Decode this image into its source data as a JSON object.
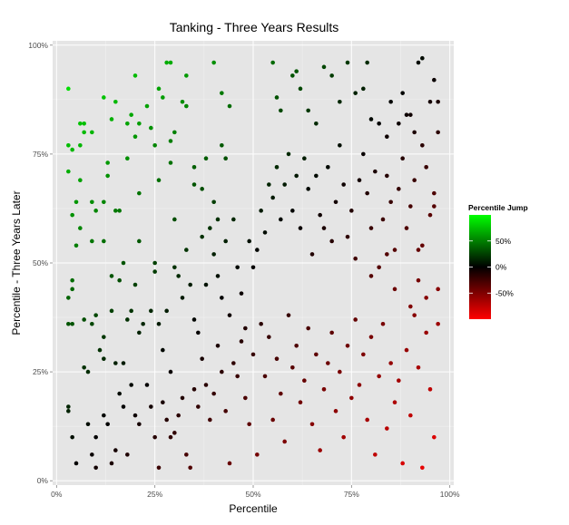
{
  "chart_data": {
    "type": "scatter",
    "title": "Tanking - Three Years Results",
    "xlabel": "Percentile",
    "ylabel": "Percentile - Three Years Later",
    "xlim": [
      -0.01,
      1.01
    ],
    "ylim": [
      -0.01,
      1.01
    ],
    "x_ticks": [
      0,
      0.25,
      0.5,
      0.75,
      1.0
    ],
    "x_tick_labels": [
      "0%",
      "25%",
      "50%",
      "75%",
      "100%"
    ],
    "y_ticks": [
      0,
      0.25,
      0.5,
      0.75,
      1.0
    ],
    "y_tick_labels": [
      "0%",
      "25%",
      "50%",
      "75%",
      "100%"
    ],
    "grid": true,
    "color_scale": {
      "variable": "y - x",
      "low": "#ff0000",
      "mid": "#000000",
      "high": "#00ff00",
      "limits": [
        -1,
        1
      ]
    },
    "legend": {
      "title": "Percentile Jump",
      "placement": "right",
      "breaks": [
        0.5,
        0,
        -0.5
      ],
      "labels": [
        "50%",
        "0%",
        "-50%"
      ]
    },
    "points": [
      [
        0.03,
        0.9
      ],
      [
        0.03,
        0.77
      ],
      [
        0.04,
        0.76
      ],
      [
        0.03,
        0.71
      ],
      [
        0.06,
        0.77
      ],
      [
        0.06,
        0.82
      ],
      [
        0.07,
        0.82
      ],
      [
        0.07,
        0.8
      ],
      [
        0.06,
        0.69
      ],
      [
        0.09,
        0.8
      ],
      [
        0.05,
        0.64
      ],
      [
        0.04,
        0.61
      ],
      [
        0.06,
        0.58
      ],
      [
        0.09,
        0.64
      ],
      [
        0.09,
        0.55
      ],
      [
        0.1,
        0.62
      ],
      [
        0.12,
        0.55
      ],
      [
        0.13,
        0.73
      ],
      [
        0.13,
        0.7
      ],
      [
        0.12,
        0.64
      ],
      [
        0.12,
        0.88
      ],
      [
        0.14,
        0.83
      ],
      [
        0.15,
        0.87
      ],
      [
        0.15,
        0.62
      ],
      [
        0.16,
        0.62
      ],
      [
        0.18,
        0.82
      ],
      [
        0.18,
        0.74
      ],
      [
        0.19,
        0.84
      ],
      [
        0.2,
        0.93
      ],
      [
        0.2,
        0.79
      ],
      [
        0.21,
        0.82
      ],
      [
        0.21,
        0.66
      ],
      [
        0.21,
        0.55
      ],
      [
        0.23,
        0.86
      ],
      [
        0.24,
        0.81
      ],
      [
        0.26,
        0.9
      ],
      [
        0.25,
        0.77
      ],
      [
        0.26,
        0.69
      ],
      [
        0.27,
        0.88
      ],
      [
        0.28,
        0.96
      ],
      [
        0.29,
        0.96
      ],
      [
        0.29,
        0.78
      ],
      [
        0.3,
        0.8
      ],
      [
        0.29,
        0.73
      ],
      [
        0.3,
        0.6
      ],
      [
        0.32,
        0.87
      ],
      [
        0.33,
        0.93
      ],
      [
        0.33,
        0.86
      ],
      [
        0.35,
        0.72
      ],
      [
        0.35,
        0.68
      ],
      [
        0.4,
        0.96
      ],
      [
        0.42,
        0.89
      ],
      [
        0.42,
        0.77
      ],
      [
        0.43,
        0.74
      ],
      [
        0.44,
        0.86
      ],
      [
        0.38,
        0.74
      ],
      [
        0.37,
        0.67
      ],
      [
        0.4,
        0.64
      ],
      [
        0.41,
        0.6
      ],
      [
        0.03,
        0.42
      ],
      [
        0.03,
        0.36
      ],
      [
        0.04,
        0.46
      ],
      [
        0.04,
        0.44
      ],
      [
        0.04,
        0.36
      ],
      [
        0.05,
        0.54
      ],
      [
        0.07,
        0.37
      ],
      [
        0.07,
        0.26
      ],
      [
        0.08,
        0.25
      ],
      [
        0.09,
        0.36
      ],
      [
        0.1,
        0.38
      ],
      [
        0.11,
        0.3
      ],
      [
        0.12,
        0.33
      ],
      [
        0.12,
        0.28
      ],
      [
        0.14,
        0.47
      ],
      [
        0.14,
        0.39
      ],
      [
        0.15,
        0.27
      ],
      [
        0.16,
        0.46
      ],
      [
        0.17,
        0.5
      ],
      [
        0.17,
        0.27
      ],
      [
        0.18,
        0.37
      ],
      [
        0.19,
        0.39
      ],
      [
        0.2,
        0.45
      ],
      [
        0.21,
        0.34
      ],
      [
        0.22,
        0.36
      ],
      [
        0.24,
        0.39
      ],
      [
        0.25,
        0.5
      ],
      [
        0.25,
        0.48
      ],
      [
        0.26,
        0.36
      ],
      [
        0.27,
        0.3
      ],
      [
        0.28,
        0.39
      ],
      [
        0.29,
        0.25
      ],
      [
        0.3,
        0.49
      ],
      [
        0.31,
        0.47
      ],
      [
        0.32,
        0.42
      ],
      [
        0.33,
        0.53
      ],
      [
        0.34,
        0.45
      ],
      [
        0.35,
        0.37
      ],
      [
        0.36,
        0.34
      ],
      [
        0.37,
        0.56
      ],
      [
        0.38,
        0.45
      ],
      [
        0.39,
        0.58
      ],
      [
        0.4,
        0.52
      ],
      [
        0.41,
        0.47
      ],
      [
        0.42,
        0.42
      ],
      [
        0.43,
        0.55
      ],
      [
        0.44,
        0.38
      ],
      [
        0.45,
        0.6
      ],
      [
        0.46,
        0.49
      ],
      [
        0.47,
        0.43
      ],
      [
        0.48,
        0.35
      ],
      [
        0.49,
        0.55
      ],
      [
        0.5,
        0.49
      ],
      [
        0.51,
        0.53
      ],
      [
        0.52,
        0.62
      ],
      [
        0.53,
        0.57
      ],
      [
        0.54,
        0.68
      ],
      [
        0.55,
        0.65
      ],
      [
        0.56,
        0.72
      ],
      [
        0.57,
        0.6
      ],
      [
        0.58,
        0.68
      ],
      [
        0.59,
        0.75
      ],
      [
        0.6,
        0.62
      ],
      [
        0.61,
        0.7
      ],
      [
        0.62,
        0.58
      ],
      [
        0.63,
        0.74
      ],
      [
        0.64,
        0.67
      ],
      [
        0.65,
        0.52
      ],
      [
        0.66,
        0.7
      ],
      [
        0.67,
        0.61
      ],
      [
        0.68,
        0.58
      ],
      [
        0.69,
        0.72
      ],
      [
        0.7,
        0.55
      ],
      [
        0.71,
        0.64
      ],
      [
        0.72,
        0.77
      ],
      [
        0.73,
        0.68
      ],
      [
        0.74,
        0.56
      ],
      [
        0.75,
        0.62
      ],
      [
        0.76,
        0.51
      ],
      [
        0.77,
        0.69
      ],
      [
        0.78,
        0.75
      ],
      [
        0.79,
        0.66
      ],
      [
        0.8,
        0.58
      ],
      [
        0.81,
        0.71
      ],
      [
        0.82,
        0.49
      ],
      [
        0.83,
        0.6
      ],
      [
        0.84,
        0.7
      ],
      [
        0.85,
        0.64
      ],
      [
        0.86,
        0.53
      ],
      [
        0.87,
        0.67
      ],
      [
        0.88,
        0.74
      ],
      [
        0.89,
        0.58
      ],
      [
        0.9,
        0.63
      ],
      [
        0.91,
        0.69
      ],
      [
        0.92,
        0.53
      ],
      [
        0.93,
        0.77
      ],
      [
        0.94,
        0.72
      ],
      [
        0.95,
        0.61
      ],
      [
        0.96,
        0.66
      ],
      [
        0.97,
        0.8
      ],
      [
        0.55,
        0.96
      ],
      [
        0.56,
        0.88
      ],
      [
        0.57,
        0.85
      ],
      [
        0.6,
        0.93
      ],
      [
        0.61,
        0.94
      ],
      [
        0.62,
        0.9
      ],
      [
        0.64,
        0.85
      ],
      [
        0.66,
        0.82
      ],
      [
        0.68,
        0.95
      ],
      [
        0.7,
        0.93
      ],
      [
        0.72,
        0.87
      ],
      [
        0.74,
        0.96
      ],
      [
        0.76,
        0.89
      ],
      [
        0.78,
        0.9
      ],
      [
        0.79,
        0.96
      ],
      [
        0.8,
        0.83
      ],
      [
        0.82,
        0.82
      ],
      [
        0.84,
        0.79
      ],
      [
        0.85,
        0.87
      ],
      [
        0.87,
        0.82
      ],
      [
        0.88,
        0.89
      ],
      [
        0.89,
        0.84
      ],
      [
        0.9,
        0.84
      ],
      [
        0.91,
        0.8
      ],
      [
        0.92,
        0.96
      ],
      [
        0.93,
        0.97
      ],
      [
        0.95,
        0.87
      ],
      [
        0.96,
        0.92
      ],
      [
        0.97,
        0.87
      ],
      [
        0.03,
        0.17
      ],
      [
        0.03,
        0.16
      ],
      [
        0.04,
        0.1
      ],
      [
        0.05,
        0.04
      ],
      [
        0.08,
        0.13
      ],
      [
        0.09,
        0.06
      ],
      [
        0.1,
        0.1
      ],
      [
        0.1,
        0.03
      ],
      [
        0.12,
        0.15
      ],
      [
        0.13,
        0.13
      ],
      [
        0.14,
        0.04
      ],
      [
        0.15,
        0.07
      ],
      [
        0.16,
        0.2
      ],
      [
        0.17,
        0.17
      ],
      [
        0.18,
        0.06
      ],
      [
        0.19,
        0.22
      ],
      [
        0.2,
        0.15
      ],
      [
        0.21,
        0.13
      ],
      [
        0.23,
        0.22
      ],
      [
        0.24,
        0.17
      ],
      [
        0.25,
        0.1
      ],
      [
        0.26,
        0.03
      ],
      [
        0.27,
        0.18
      ],
      [
        0.28,
        0.14
      ],
      [
        0.29,
        0.1
      ],
      [
        0.3,
        0.11
      ],
      [
        0.31,
        0.15
      ],
      [
        0.32,
        0.19
      ],
      [
        0.33,
        0.06
      ],
      [
        0.34,
        0.03
      ],
      [
        0.35,
        0.21
      ],
      [
        0.36,
        0.17
      ],
      [
        0.37,
        0.28
      ],
      [
        0.38,
        0.22
      ],
      [
        0.39,
        0.14
      ],
      [
        0.4,
        0.2
      ],
      [
        0.41,
        0.31
      ],
      [
        0.42,
        0.25
      ],
      [
        0.43,
        0.16
      ],
      [
        0.44,
        0.04
      ],
      [
        0.45,
        0.27
      ],
      [
        0.46,
        0.24
      ],
      [
        0.47,
        0.32
      ],
      [
        0.48,
        0.19
      ],
      [
        0.49,
        0.13
      ],
      [
        0.5,
        0.29
      ],
      [
        0.51,
        0.06
      ],
      [
        0.52,
        0.36
      ],
      [
        0.53,
        0.24
      ],
      [
        0.54,
        0.33
      ],
      [
        0.55,
        0.14
      ],
      [
        0.56,
        0.28
      ],
      [
        0.57,
        0.2
      ],
      [
        0.58,
        0.09
      ],
      [
        0.59,
        0.38
      ],
      [
        0.6,
        0.26
      ],
      [
        0.61,
        0.31
      ],
      [
        0.62,
        0.18
      ],
      [
        0.63,
        0.23
      ],
      [
        0.64,
        0.35
      ],
      [
        0.65,
        0.13
      ],
      [
        0.66,
        0.29
      ],
      [
        0.67,
        0.07
      ],
      [
        0.68,
        0.21
      ],
      [
        0.69,
        0.27
      ],
      [
        0.7,
        0.34
      ],
      [
        0.71,
        0.16
      ],
      [
        0.72,
        0.25
      ],
      [
        0.73,
        0.1
      ],
      [
        0.74,
        0.31
      ],
      [
        0.75,
        0.19
      ],
      [
        0.76,
        0.37
      ],
      [
        0.77,
        0.22
      ],
      [
        0.78,
        0.29
      ],
      [
        0.79,
        0.14
      ],
      [
        0.8,
        0.33
      ],
      [
        0.81,
        0.06
      ],
      [
        0.82,
        0.24
      ],
      [
        0.83,
        0.36
      ],
      [
        0.84,
        0.12
      ],
      [
        0.85,
        0.27
      ],
      [
        0.86,
        0.18
      ],
      [
        0.87,
        0.23
      ],
      [
        0.88,
        0.04
      ],
      [
        0.89,
        0.3
      ],
      [
        0.9,
        0.15
      ],
      [
        0.91,
        0.38
      ],
      [
        0.92,
        0.26
      ],
      [
        0.93,
        0.03
      ],
      [
        0.94,
        0.34
      ],
      [
        0.95,
        0.21
      ],
      [
        0.96,
        0.1
      ],
      [
        0.97,
        0.44
      ],
      [
        0.97,
        0.36
      ],
      [
        0.96,
        0.63
      ],
      [
        0.94,
        0.42
      ],
      [
        0.93,
        0.54
      ],
      [
        0.92,
        0.46
      ],
      [
        0.9,
        0.4
      ],
      [
        0.86,
        0.44
      ],
      [
        0.84,
        0.52
      ],
      [
        0.8,
        0.47
      ]
    ]
  }
}
